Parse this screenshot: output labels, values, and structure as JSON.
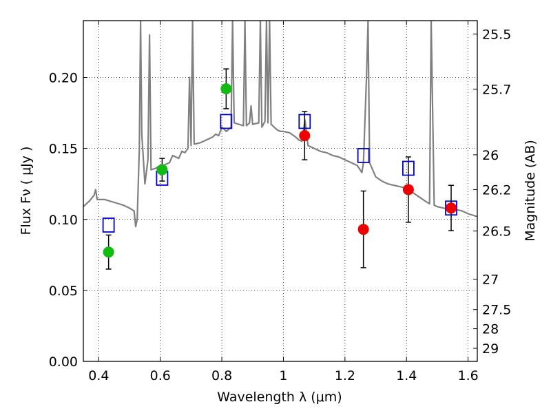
{
  "chart_data": {
    "type": "scatter",
    "title": "",
    "xlabel": "Wavelength  λ (μm)",
    "ylabel": "Flux  Fν  ( μJy )",
    "ylabel_right": "Magnitude (AB)",
    "xlim": [
      0.35,
      1.63
    ],
    "ylim": [
      0.0,
      0.24
    ],
    "grid": true,
    "x_ticks": [
      {
        "value": 0.4,
        "label": "0.4"
      },
      {
        "value": 0.6,
        "label": "0.6"
      },
      {
        "value": 0.8,
        "label": "0.8"
      },
      {
        "value": 1.0,
        "label": "1"
      },
      {
        "value": 1.2,
        "label": "1.2"
      },
      {
        "value": 1.4,
        "label": "1.4"
      },
      {
        "value": 1.6,
        "label": "1.6"
      }
    ],
    "y_ticks": [
      {
        "value": 0.0,
        "label": "0.00"
      },
      {
        "value": 0.05,
        "label": "0.05"
      },
      {
        "value": 0.1,
        "label": "0.10"
      },
      {
        "value": 0.15,
        "label": "0.15"
      },
      {
        "value": 0.2,
        "label": "0.20"
      }
    ],
    "right_ticks": [
      {
        "label": "25.5",
        "flux": 0.2306
      },
      {
        "label": "25.7",
        "flux": 0.1918
      },
      {
        "label": "26",
        "flux": 0.1455
      },
      {
        "label": "26.2",
        "flux": 0.121
      },
      {
        "label": "26.5",
        "flux": 0.0918
      },
      {
        "label": "27",
        "flux": 0.0579
      },
      {
        "label": "27.5",
        "flux": 0.0365
      },
      {
        "label": "28",
        "flux": 0.023
      },
      {
        "label": "29",
        "flux": 0.0092
      }
    ],
    "model_spectrum": {
      "color": "#808080",
      "points": [
        [
          0.35,
          0.109
        ],
        [
          0.37,
          0.113
        ],
        [
          0.385,
          0.117
        ],
        [
          0.39,
          0.121
        ],
        [
          0.395,
          0.114
        ],
        [
          0.42,
          0.114
        ],
        [
          0.45,
          0.112
        ],
        [
          0.48,
          0.11
        ],
        [
          0.5,
          0.108
        ],
        [
          0.515,
          0.106
        ],
        [
          0.52,
          0.095
        ],
        [
          0.525,
          0.1
        ],
        [
          0.532,
          0.15
        ],
        [
          0.536,
          0.24
        ],
        [
          0.54,
          0.16
        ],
        [
          0.55,
          0.125
        ],
        [
          0.56,
          0.142
        ],
        [
          0.565,
          0.23
        ],
        [
          0.57,
          0.135
        ],
        [
          0.585,
          0.136
        ],
        [
          0.6,
          0.138
        ],
        [
          0.61,
          0.138
        ],
        [
          0.62,
          0.139
        ],
        [
          0.63,
          0.14
        ],
        [
          0.64,
          0.145
        ],
        [
          0.66,
          0.143
        ],
        [
          0.67,
          0.148
        ],
        [
          0.68,
          0.147
        ],
        [
          0.69,
          0.15
        ],
        [
          0.695,
          0.2
        ],
        [
          0.7,
          0.152
        ],
        [
          0.705,
          0.24
        ],
        [
          0.71,
          0.153
        ],
        [
          0.73,
          0.154
        ],
        [
          0.75,
          0.156
        ],
        [
          0.77,
          0.158
        ],
        [
          0.78,
          0.16
        ],
        [
          0.79,
          0.159
        ],
        [
          0.8,
          0.165
        ],
        [
          0.815,
          0.162
        ],
        [
          0.83,
          0.165
        ],
        [
          0.835,
          0.24
        ],
        [
          0.84,
          0.168
        ],
        [
          0.855,
          0.167
        ],
        [
          0.87,
          0.166
        ],
        [
          0.875,
          0.24
        ],
        [
          0.88,
          0.166
        ],
        [
          0.89,
          0.168
        ],
        [
          0.895,
          0.18
        ],
        [
          0.9,
          0.167
        ],
        [
          0.92,
          0.168
        ],
        [
          0.925,
          0.24
        ],
        [
          0.93,
          0.165
        ],
        [
          0.94,
          0.169
        ],
        [
          0.945,
          0.24
        ],
        [
          0.95,
          0.168
        ],
        [
          0.955,
          0.24
        ],
        [
          0.96,
          0.167
        ],
        [
          0.97,
          0.165
        ],
        [
          0.98,
          0.163
        ],
        [
          0.99,
          0.162
        ],
        [
          1.0,
          0.162
        ],
        [
          1.02,
          0.161
        ],
        [
          1.04,
          0.158
        ],
        [
          1.05,
          0.156
        ],
        [
          1.06,
          0.155
        ],
        [
          1.07,
          0.17
        ],
        [
          1.08,
          0.152
        ],
        [
          1.1,
          0.15
        ],
        [
          1.12,
          0.148
        ],
        [
          1.14,
          0.147
        ],
        [
          1.16,
          0.145
        ],
        [
          1.18,
          0.144
        ],
        [
          1.2,
          0.142
        ],
        [
          1.22,
          0.14
        ],
        [
          1.24,
          0.138
        ],
        [
          1.255,
          0.133
        ],
        [
          1.26,
          0.14
        ],
        [
          1.27,
          0.2
        ],
        [
          1.275,
          0.24
        ],
        [
          1.28,
          0.14
        ],
        [
          1.3,
          0.13
        ],
        [
          1.32,
          0.127
        ],
        [
          1.34,
          0.125
        ],
        [
          1.36,
          0.124
        ],
        [
          1.38,
          0.123
        ],
        [
          1.4,
          0.122
        ],
        [
          1.42,
          0.119
        ],
        [
          1.44,
          0.116
        ],
        [
          1.46,
          0.113
        ],
        [
          1.475,
          0.111
        ],
        [
          1.48,
          0.24
        ],
        [
          1.49,
          0.11
        ],
        [
          1.5,
          0.109
        ],
        [
          1.52,
          0.108
        ],
        [
          1.54,
          0.107
        ],
        [
          1.55,
          0.105
        ],
        [
          1.56,
          0.107
        ],
        [
          1.58,
          0.106
        ],
        [
          1.6,
          0.104
        ],
        [
          1.63,
          0.102
        ]
      ]
    },
    "series": [
      {
        "marker": "open-square",
        "color": "#0000cc",
        "points": [
          {
            "x": 0.432,
            "y": 0.096
          },
          {
            "x": 0.606,
            "y": 0.129
          },
          {
            "x": 0.814,
            "y": 0.169
          },
          {
            "x": 1.069,
            "y": 0.169
          },
          {
            "x": 1.26,
            "y": 0.145
          },
          {
            "x": 1.406,
            "y": 0.136
          },
          {
            "x": 1.545,
            "y": 0.108
          }
        ]
      },
      {
        "marker": "filled-circle",
        "color": "#11bb11",
        "points": [
          {
            "x": 0.432,
            "y": 0.077,
            "err": 0.012
          },
          {
            "x": 0.606,
            "y": 0.135,
            "err": 0.008
          },
          {
            "x": 0.814,
            "y": 0.192,
            "err": 0.014
          }
        ]
      },
      {
        "marker": "filled-circle",
        "color": "#ee0000",
        "points": [
          {
            "x": 1.069,
            "y": 0.159,
            "err": 0.017
          },
          {
            "x": 1.26,
            "y": 0.093,
            "err": 0.027
          },
          {
            "x": 1.406,
            "y": 0.121,
            "err": 0.023
          },
          {
            "x": 1.545,
            "y": 0.108,
            "err": 0.016
          }
        ]
      }
    ]
  }
}
